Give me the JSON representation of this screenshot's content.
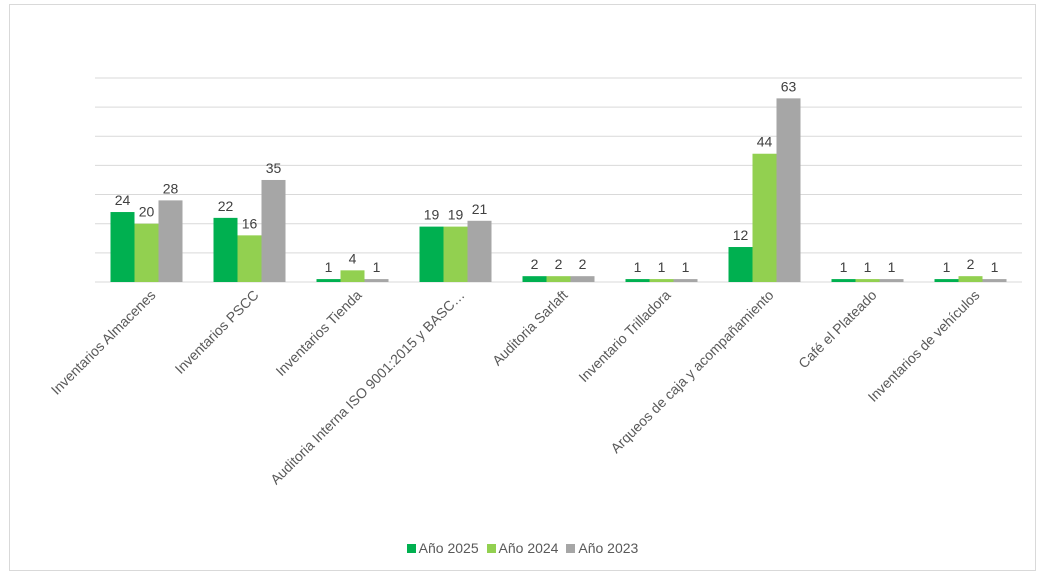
{
  "chart_data": {
    "type": "bar",
    "title": "",
    "xlabel": "",
    "ylabel": "",
    "ylim": [
      0,
      70
    ],
    "grid": true,
    "legend_position": "bottom",
    "categories": [
      "Inventarios Almacenes",
      "Inventarios PSCC",
      "Inventarios Tienda",
      "Auditoria Interna ISO 9001:2015 y BASC…",
      "Auditoria Sarlaft",
      "Inventario Trilladora",
      "Arqueos de caja y acompañamiento",
      "Café el Plateado",
      "Inventarios de vehículos"
    ],
    "series": [
      {
        "name": "Año 2025",
        "color": "#00b050",
        "values": [
          24,
          22,
          1,
          19,
          2,
          1,
          12,
          1,
          1
        ]
      },
      {
        "name": "Año 2024",
        "color": "#92d050",
        "values": [
          20,
          16,
          4,
          19,
          2,
          1,
          44,
          1,
          2
        ]
      },
      {
        "name": "Año 2023",
        "color": "#a6a6a6",
        "values": [
          28,
          35,
          1,
          21,
          2,
          1,
          63,
          1,
          1
        ]
      }
    ]
  }
}
